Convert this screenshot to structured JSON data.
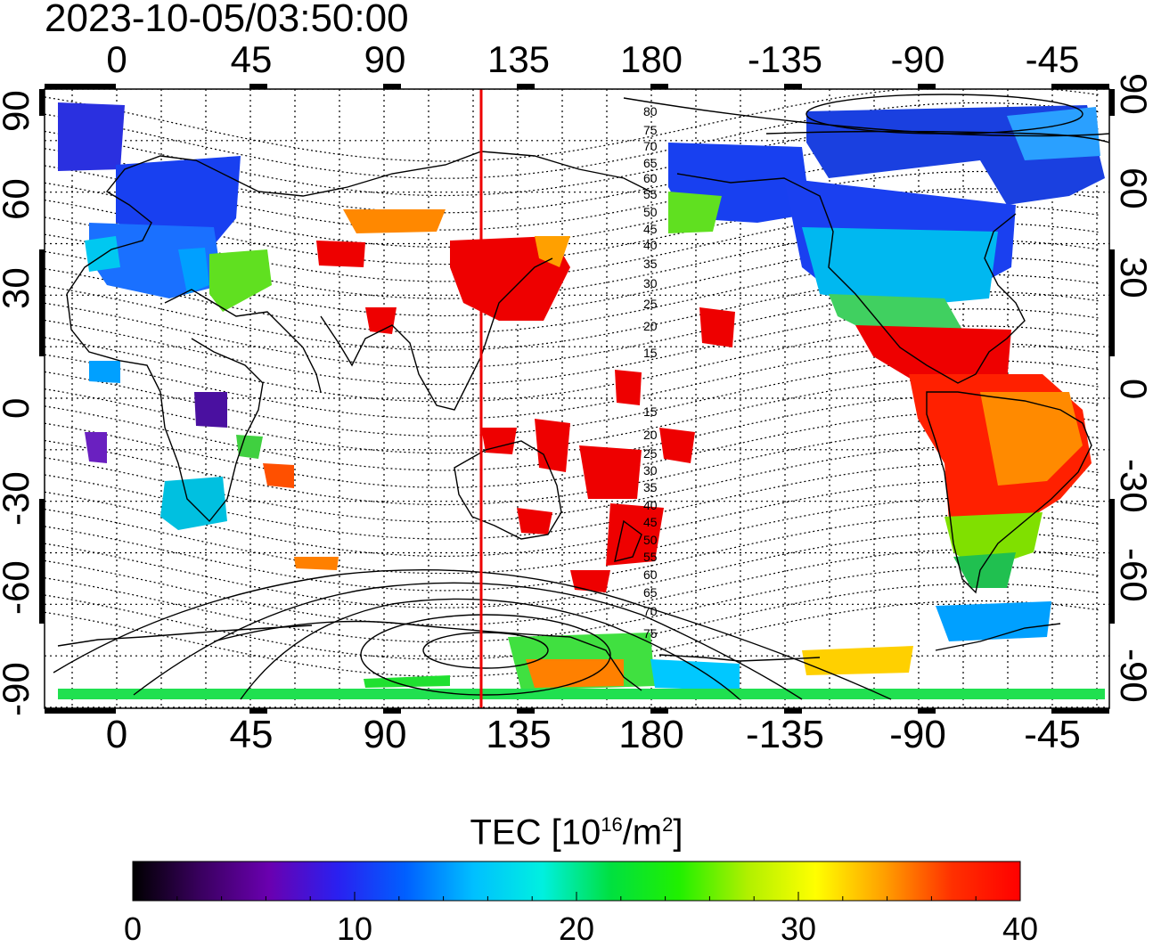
{
  "map": {
    "timestamp": "2023-10-05/03:50:00",
    "lon_ticks_top": [
      "0",
      "45",
      "90",
      "135",
      "180",
      "-135",
      "-90",
      "-45"
    ],
    "lon_ticks_bottom": [
      "0",
      "45",
      "90",
      "135",
      "180",
      "-135",
      "-90",
      "-45"
    ],
    "lat_ticks_left": [
      "90",
      "60",
      "30",
      "0",
      "-30",
      "-60",
      "-90"
    ],
    "lat_ticks_right": [
      "90",
      "60",
      "30",
      "0",
      "-30",
      "-60",
      "-90"
    ],
    "contour_labels_north": [
      "80",
      "75",
      "70",
      "65",
      "60",
      "55",
      "50",
      "45",
      "40",
      "35",
      "30",
      "25",
      "20",
      "15"
    ],
    "contour_labels_south": [
      "15",
      "20",
      "25",
      "30",
      "35",
      "40",
      "45",
      "50",
      "55",
      "60",
      "65",
      "70",
      "75"
    ],
    "meridian_line_lon": 122,
    "meridian_line_color": "#ee0000"
  },
  "colorbar": {
    "title": "TEC  [10",
    "title_sup1": "16",
    "title_mid": "/m",
    "title_sup2": "2",
    "title_end": "]",
    "ticks": [
      "0",
      "10",
      "20",
      "30",
      "40"
    ],
    "min": 0,
    "max": 40,
    "colors": [
      "#000000",
      "#3a0060",
      "#6a00b0",
      "#2a20f0",
      "#0060ff",
      "#00c0ff",
      "#00f0e0",
      "#00e040",
      "#20f000",
      "#b0f000",
      "#ffff00",
      "#ffa000",
      "#ff3000",
      "#ff0000"
    ]
  }
}
